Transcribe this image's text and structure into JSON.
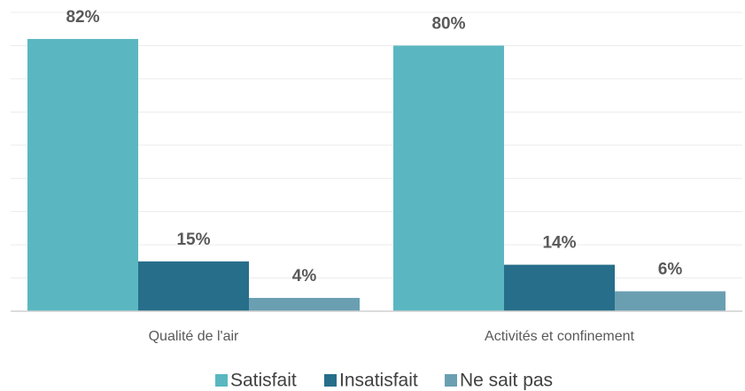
{
  "chart_data": {
    "type": "bar",
    "categories": [
      "Qualité de l'air",
      "Activités et confinement"
    ],
    "series": [
      {
        "name": "Satisfait",
        "color": "#5ab7c1",
        "values": [
          82,
          80
        ],
        "value_labels": [
          "82%",
          "80%"
        ]
      },
      {
        "name": "Insatisfait",
        "color": "#276e8a",
        "values": [
          15,
          14
        ],
        "value_labels": [
          "15%",
          "14%"
        ]
      },
      {
        "name": "Ne sait pas",
        "color": "#6a9fb2",
        "values": [
          4,
          6
        ],
        "value_labels": [
          "4%",
          "6%"
        ]
      }
    ],
    "ylim": [
      0,
      90
    ],
    "yticks": [
      0,
      10,
      20,
      30,
      40,
      50,
      60,
      70,
      80,
      90
    ],
    "grid": true,
    "legend": "bottom"
  }
}
